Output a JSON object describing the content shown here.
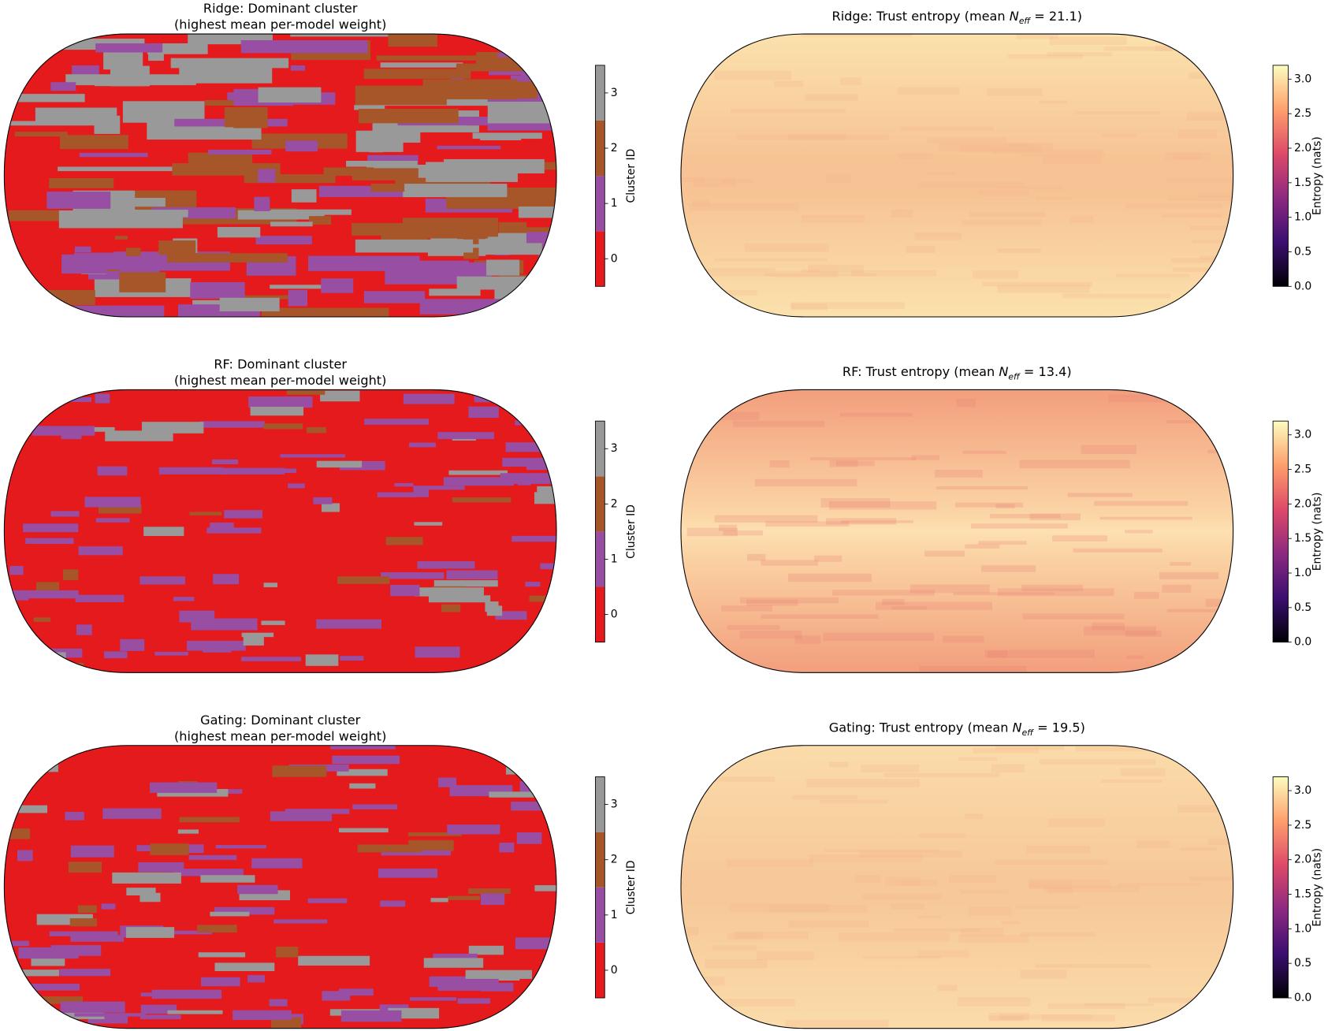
{
  "panels": [
    {
      "title": [
        "Ridge: Dominant cluster",
        "(highest mean per-model weight)"
      ],
      "colorbar": {
        "label": "Cluster ID",
        "lim": [
          -0.5,
          3.5
        ],
        "ticks": [
          0,
          1,
          2,
          3
        ],
        "colors": [
          "#e41a1c",
          "#984ea3",
          "#a65628",
          "#999999"
        ]
      }
    },
    {
      "title": {
        "text": "Ridge: Trust entropy  (mean ",
        "symbol": "N",
        "subscript": "eff",
        "rest": " = 21.1)"
      },
      "colorbar": {
        "label": "Entropy (nats)",
        "lim": [
          0,
          3.2
        ],
        "ticks": [
          {
            "value": 0,
            "label": "0.0"
          },
          {
            "value": 0.5,
            "label": "0.5"
          },
          {
            "value": 1,
            "label": "1.0"
          },
          {
            "value": 1.5,
            "label": "1.5"
          },
          {
            "value": 2,
            "label": "2.0"
          },
          {
            "value": 2.5,
            "label": "2.5"
          },
          {
            "value": 3,
            "label": "3.0"
          }
        ],
        "colors": [
          "#000004",
          "#3b0f70",
          "#8c2981",
          "#de4968",
          "#fe9f6d",
          "#fcfdbf"
        ]
      }
    },
    {
      "title": [
        "RF: Dominant cluster",
        "(highest mean per-model weight)"
      ],
      "colorbar": {
        "label": "Cluster ID",
        "lim": [
          -0.5,
          3.5
        ],
        "ticks": [
          0,
          1,
          2,
          3
        ],
        "colors": [
          "#e41a1c",
          "#984ea3",
          "#a65628",
          "#999999"
        ]
      }
    },
    {
      "title": {
        "text": "RF: Trust entropy  (mean ",
        "symbol": "N",
        "subscript": "eff",
        "rest": " = 13.4)"
      },
      "colorbar": {
        "label": "Entropy (nats)",
        "lim": [
          0,
          3.2
        ],
        "ticks": [
          {
            "value": 0,
            "label": "0.0"
          },
          {
            "value": 0.5,
            "label": "0.5"
          },
          {
            "value": 1,
            "label": "1.0"
          },
          {
            "value": 1.5,
            "label": "1.5"
          },
          {
            "value": 2,
            "label": "2.0"
          },
          {
            "value": 2.5,
            "label": "2.5"
          },
          {
            "value": 3,
            "label": "3.0"
          }
        ],
        "colors": [
          "#000004",
          "#3b0f70",
          "#8c2981",
          "#de4968",
          "#fe9f6d",
          "#fcfdbf"
        ]
      }
    },
    {
      "title": [
        "Gating: Dominant cluster",
        "(highest mean per-model weight)"
      ],
      "colorbar": {
        "label": "Cluster ID",
        "lim": [
          -0.5,
          3.5
        ],
        "ticks": [
          0,
          1,
          2,
          3
        ],
        "colors": [
          "#e41a1c",
          "#984ea3",
          "#a65628",
          "#999999"
        ]
      }
    },
    {
      "title": {
        "text": "Gating: Trust entropy  (mean ",
        "symbol": "N",
        "subscript": "eff",
        "rest": " = 19.5)"
      },
      "colorbar": {
        "label": "Entropy (nats)",
        "lim": [
          0,
          3.2
        ],
        "ticks": [
          {
            "value": 0,
            "label": "0.0"
          },
          {
            "value": 0.5,
            "label": "0.5"
          },
          {
            "value": 1,
            "label": "1.0"
          },
          {
            "value": 1.5,
            "label": "1.5"
          },
          {
            "value": 2,
            "label": "2.0"
          },
          {
            "value": 2.5,
            "label": "2.5"
          },
          {
            "value": 3,
            "label": "3.0"
          }
        ],
        "colors": [
          "#000004",
          "#3b0f70",
          "#8c2981",
          "#de4968",
          "#fe9f6d",
          "#fcfdbf"
        ]
      }
    }
  ]
}
